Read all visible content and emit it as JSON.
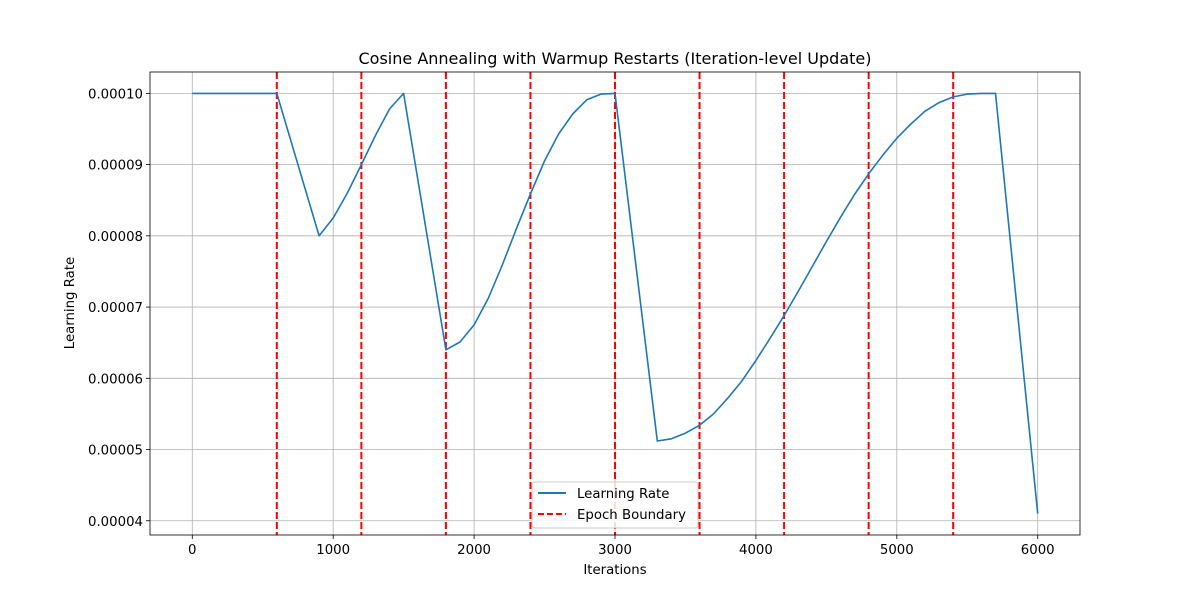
{
  "chart_data": {
    "type": "line",
    "title": "Cosine Annealing with Warmup Restarts (Iteration-level Update)",
    "xlabel": "Iterations",
    "ylabel": "Learning Rate",
    "xlim": [
      -300,
      6300
    ],
    "ylim": [
      3.8e-05,
      0.000103
    ],
    "xticks": [
      0,
      1000,
      2000,
      3000,
      4000,
      5000,
      6000
    ],
    "xtick_labels": [
      "0",
      "1000",
      "2000",
      "3000",
      "4000",
      "5000",
      "6000"
    ],
    "yticks": [
      4e-05,
      5e-05,
      6e-05,
      7e-05,
      8e-05,
      9e-05,
      0.0001
    ],
    "ytick_labels": [
      "0.00004",
      "0.00005",
      "0.00006",
      "0.00007",
      "0.00008",
      "0.00009",
      "0.00010"
    ],
    "grid": true,
    "legend_position": "bottom-center",
    "series": [
      {
        "name": "Learning Rate",
        "color": "#1f77b4",
        "style": "solid",
        "x": [
          0,
          600,
          900,
          1000,
          1100,
          1200,
          1300,
          1400,
          1500,
          1800,
          1900,
          2000,
          2100,
          2200,
          2300,
          2400,
          2500,
          2600,
          2700,
          2800,
          2900,
          3000,
          3300,
          3400,
          3500,
          3600,
          3700,
          3800,
          3900,
          4000,
          4100,
          4200,
          4300,
          4400,
          4500,
          4600,
          4700,
          4800,
          4900,
          5000,
          5100,
          5200,
          5300,
          5400,
          5500,
          5600,
          5700,
          6000
        ],
        "y": [
          0.0001,
          0.0001,
          8e-05,
          8.25e-05,
          8.6e-05,
          9e-05,
          9.41e-05,
          9.78e-05,
          0.0001,
          6.4e-05,
          6.51e-05,
          6.75e-05,
          7.12e-05,
          7.59e-05,
          8.1e-05,
          8.59e-05,
          9.05e-05,
          9.43e-05,
          9.71e-05,
          9.91e-05,
          9.99e-05,
          0.0001,
          5.12e-05,
          5.15e-05,
          5.23e-05,
          5.34e-05,
          5.5e-05,
          5.72e-05,
          5.96e-05,
          6.25e-05,
          6.56e-05,
          6.88e-05,
          7.22e-05,
          7.57e-05,
          7.92e-05,
          8.26e-05,
          8.58e-05,
          8.87e-05,
          9.13e-05,
          9.37e-05,
          9.57e-05,
          9.75e-05,
          9.87e-05,
          9.95e-05,
          9.99e-05,
          0.0001,
          0.0001,
          4.1e-05
        ]
      }
    ],
    "boundaries": {
      "name": "Epoch Boundary",
      "color": "#ff0000",
      "style": "dashed",
      "x": [
        600,
        1200,
        1800,
        2400,
        3000,
        3600,
        4200,
        4800,
        5400
      ]
    }
  }
}
